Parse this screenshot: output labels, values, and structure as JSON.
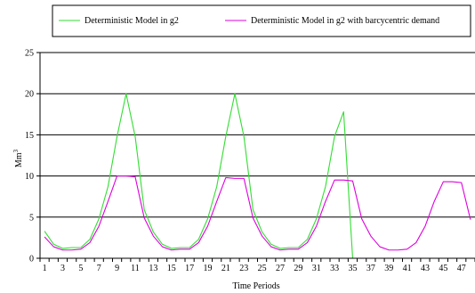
{
  "chart_data": {
    "type": "line",
    "title": "",
    "xlabel": "Time Periods",
    "ylabel": "Mm",
    "ylabel_sup": "3",
    "ylim": [
      0,
      25
    ],
    "yticks": [
      "0",
      "5",
      "10",
      "15",
      "20",
      "25"
    ],
    "x": [
      1,
      2,
      3,
      4,
      5,
      6,
      7,
      8,
      9,
      10,
      11,
      12,
      13,
      14,
      15,
      16,
      17,
      18,
      19,
      20,
      21,
      22,
      23,
      24,
      25,
      26,
      27,
      28,
      29,
      30,
      31,
      32,
      33,
      34,
      35,
      36,
      37,
      38,
      39,
      40,
      41,
      42,
      43,
      44,
      45,
      46,
      47,
      48
    ],
    "xticks": [
      "1",
      "3",
      "5",
      "7",
      "9",
      "11",
      "13",
      "15",
      "17",
      "19",
      "21",
      "23",
      "25",
      "27",
      "29",
      "31",
      "33",
      "35",
      "37",
      "39",
      "41",
      "43",
      "45",
      "47"
    ],
    "grid": "horizontal",
    "legend_position": "top",
    "series": [
      {
        "name": "Deterministic Model in g2",
        "color": "#33dd33",
        "values": [
          3.3,
          1.7,
          1.2,
          1.3,
          1.3,
          2.3,
          4.8,
          8.7,
          14.8,
          20.0,
          14.8,
          5.9,
          3.2,
          1.7,
          1.2,
          1.3,
          1.3,
          2.3,
          4.8,
          8.7,
          14.8,
          20.0,
          14.8,
          5.9,
          3.2,
          1.7,
          1.2,
          1.3,
          1.3,
          2.3,
          4.8,
          8.7,
          14.8,
          17.8,
          0,
          0,
          0,
          0,
          0,
          0,
          0,
          0,
          0,
          0,
          0,
          0,
          0,
          0
        ]
      },
      {
        "name": "Deterministic Model in g2 with barcycentric demand",
        "color": "#dd00dd",
        "values": [
          2.6,
          1.4,
          1.0,
          1.0,
          1.1,
          1.9,
          3.9,
          6.9,
          10.0,
          10.0,
          9.9,
          4.9,
          2.7,
          1.4,
          1.0,
          1.1,
          1.1,
          1.9,
          3.9,
          6.9,
          9.8,
          9.7,
          9.7,
          4.9,
          2.7,
          1.4,
          1.0,
          1.1,
          1.1,
          1.9,
          3.9,
          6.9,
          9.5,
          9.5,
          9.4,
          4.8,
          2.7,
          1.4,
          1.0,
          1.0,
          1.1,
          1.9,
          3.9,
          6.9,
          9.3,
          9.3,
          9.2,
          4.7
        ]
      }
    ]
  }
}
